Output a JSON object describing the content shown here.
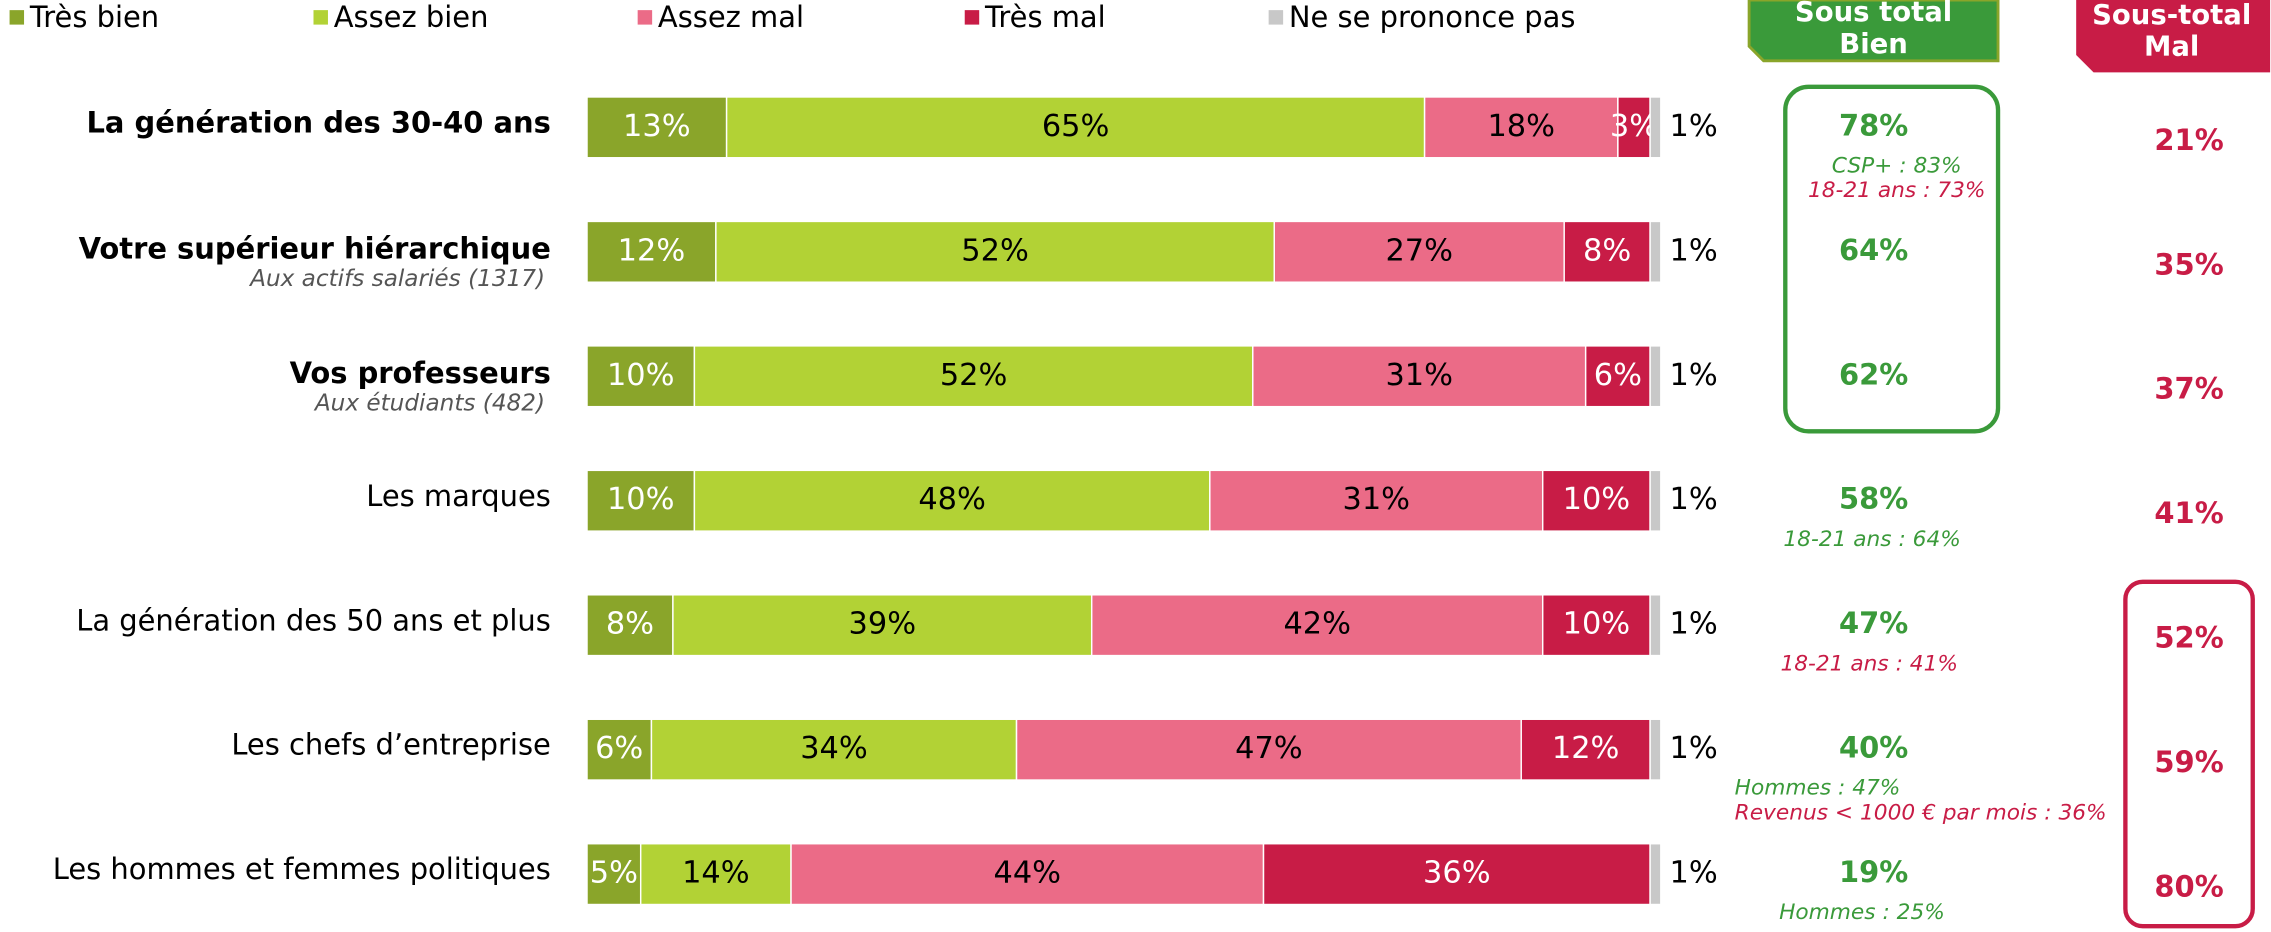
{
  "chart_data": {
    "type": "stacked-barh",
    "categories": [
      "La génération des 30-40 ans",
      "Votre supérieur hiérarchique",
      "Vos professeurs",
      "Les marques",
      "La génération des 50 ans et plus",
      "Les chefs d’entreprise",
      "Les hommes et femmes politiques"
    ],
    "category_subtitles": [
      null,
      "Aux actifs salariés (1317)",
      "Aux étudiants (482)",
      null,
      null,
      null,
      null
    ],
    "category_bold": [
      true,
      true,
      true,
      false,
      false,
      false,
      false
    ],
    "series": [
      {
        "name": "Très bien",
        "color": "#8aa52a",
        "label_color": "#ffffff",
        "values": [
          13,
          12,
          10,
          10,
          8,
          6,
          5
        ],
        "value_labels": [
          "13%",
          "12%",
          "10%",
          "10%",
          "8%",
          "6%",
          "5%"
        ]
      },
      {
        "name": "Assez bien",
        "color": "#b2d235",
        "label_color": "#000000",
        "values": [
          65,
          52,
          52,
          48,
          39,
          34,
          14
        ],
        "value_labels": [
          "65%",
          "52%",
          "52%",
          "48%",
          "39%",
          "34%",
          "14%"
        ]
      },
      {
        "name": "Assez mal",
        "color": "#eb6b87",
        "label_color": "#000000",
        "values": [
          18,
          27,
          31,
          31,
          42,
          47,
          44
        ],
        "value_labels": [
          "18%",
          "27%",
          "31%",
          "31%",
          "42%",
          "47%",
          "44%"
        ]
      },
      {
        "name": "Très mal",
        "color": "#c81c46",
        "label_color": "#ffffff",
        "values": [
          3,
          8,
          6,
          10,
          10,
          12,
          36
        ],
        "value_labels": [
          "3%",
          "8%",
          "6%",
          "10%",
          "10%",
          "12%",
          "36%"
        ]
      },
      {
        "name": "Ne se prononce pas",
        "color": "#c8c8c8",
        "label_color": "#000000",
        "values": [
          1,
          1,
          1,
          1,
          1,
          1,
          1
        ],
        "value_labels": [
          "1%",
          "1%",
          "1%",
          "1%",
          "1%",
          "1%",
          "1%"
        ]
      }
    ],
    "subtotal_bien": {
      "title": "Sous total Bien",
      "color": "#3a9a3a",
      "values": [
        78,
        64,
        62,
        58,
        47,
        40,
        19
      ],
      "value_labels": [
        "78%",
        "64%",
        "62%",
        "58%",
        "47%",
        "40%",
        "19%"
      ]
    },
    "subtotal_mal": {
      "title": "Sous-total Mal",
      "color": "#c81c46",
      "values": [
        21,
        35,
        37,
        41,
        52,
        59,
        80
      ],
      "value_labels": [
        "21%",
        "35%",
        "37%",
        "41%",
        "52%",
        "59%",
        "80%"
      ]
    },
    "notes": [
      [
        {
          "text": "CSP+ : 83%",
          "color": "#3a9a3a"
        },
        {
          "text": "18-21 ans : 73%",
          "color": "#c81c46"
        }
      ],
      [],
      [],
      [
        {
          "text": "18-21 ans : 64%",
          "color": "#3a9a3a"
        }
      ],
      [
        {
          "text": "18-21 ans : 41%",
          "color": "#c81c46"
        }
      ],
      [
        {
          "text": "Hommes : 47%",
          "color": "#3a9a3a"
        },
        {
          "text": "Revenus < 1000 € par mois : 36%",
          "color": "#c81c46"
        }
      ],
      [
        {
          "text": "Hommes : 25%",
          "color": "#3a9a3a"
        }
      ]
    ]
  }
}
